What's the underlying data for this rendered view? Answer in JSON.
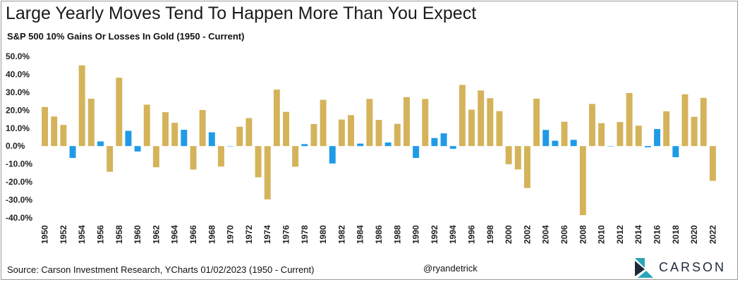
{
  "header": {
    "title": "Large Yearly Moves Tend To Happen More Than You Expect",
    "subtitle": "S&P 500 10% Gains Or Losses In Gold (1950 - Current)"
  },
  "footer": {
    "source": "Source: Carson Investment Research, YCharts 01/02/2023 (1950 - Current)",
    "handle": "@ryandetrick",
    "logo_text": "CARSON"
  },
  "colors": {
    "gold": "#d4b35a",
    "blue": "#1e9be6",
    "brand_dark": "#1e2a3a",
    "brand_teal": "#2aa5b8"
  },
  "chart_data": {
    "type": "bar",
    "title": "Large Yearly Moves Tend To Happen More Than You Expect",
    "subtitle": "S&P 500 10% Gains Or Losses In Gold (1950 - Current)",
    "xlabel": "",
    "ylabel": "",
    "ylim": [
      -40,
      50
    ],
    "yticks": [
      "50.0%",
      "40.0%",
      "30.0%",
      "20.0%",
      "10.0%",
      "0.0%",
      "-10.0%",
      "-20.0%",
      "-30.0%",
      "-40.0%"
    ],
    "ytick_values": [
      50,
      40,
      30,
      20,
      10,
      0,
      -10,
      -20,
      -30,
      -40
    ],
    "grid": false,
    "highlight_rule": "gold if |value| >= 10, blue otherwise",
    "categories": [
      1950,
      1951,
      1952,
      1953,
      1954,
      1955,
      1956,
      1957,
      1958,
      1959,
      1960,
      1961,
      1962,
      1963,
      1964,
      1965,
      1966,
      1967,
      1968,
      1969,
      1970,
      1971,
      1972,
      1973,
      1974,
      1975,
      1976,
      1977,
      1978,
      1979,
      1980,
      1981,
      1982,
      1983,
      1984,
      1985,
      1986,
      1987,
      1988,
      1989,
      1990,
      1991,
      1992,
      1993,
      1994,
      1995,
      1996,
      1997,
      1998,
      1999,
      2000,
      2001,
      2002,
      2003,
      2004,
      2005,
      2006,
      2007,
      2008,
      2009,
      2010,
      2011,
      2012,
      2013,
      2014,
      2015,
      2016,
      2017,
      2018,
      2019,
      2020,
      2021,
      2022
    ],
    "xtick_labels": [
      "1950",
      "1952",
      "1954",
      "1956",
      "1958",
      "1960",
      "1962",
      "1964",
      "1966",
      "1968",
      "1970",
      "1972",
      "1974",
      "1976",
      "1978",
      "1980",
      "1982",
      "1984",
      "1986",
      "1988",
      "1990",
      "1992",
      "1994",
      "1996",
      "1998",
      "2000",
      "2002",
      "2004",
      "2006",
      "2008",
      "2010",
      "2012",
      "2014",
      "2016",
      "2018",
      "2020",
      "2022"
    ],
    "values": [
      21.8,
      16.5,
      11.8,
      -6.6,
      45.0,
      26.4,
      2.6,
      -14.3,
      38.1,
      8.5,
      -3.0,
      23.1,
      -11.8,
      18.9,
      13.0,
      9.1,
      -13.1,
      20.1,
      7.7,
      -11.4,
      0.1,
      10.8,
      15.6,
      -17.4,
      -29.7,
      31.5,
      19.1,
      -11.5,
      1.1,
      12.3,
      25.8,
      -9.7,
      14.8,
      17.3,
      1.4,
      26.3,
      14.6,
      2.0,
      12.4,
      27.3,
      -6.6,
      26.3,
      4.5,
      7.1,
      -1.5,
      34.1,
      20.3,
      31.0,
      26.7,
      19.5,
      -10.1,
      -13.0,
      -23.4,
      26.4,
      9.0,
      3.0,
      13.6,
      3.5,
      -38.5,
      23.5,
      12.8,
      0.0,
      13.4,
      29.6,
      11.4,
      -0.7,
      9.5,
      19.4,
      -6.2,
      28.9,
      16.3,
      26.9,
      -19.4
    ]
  }
}
